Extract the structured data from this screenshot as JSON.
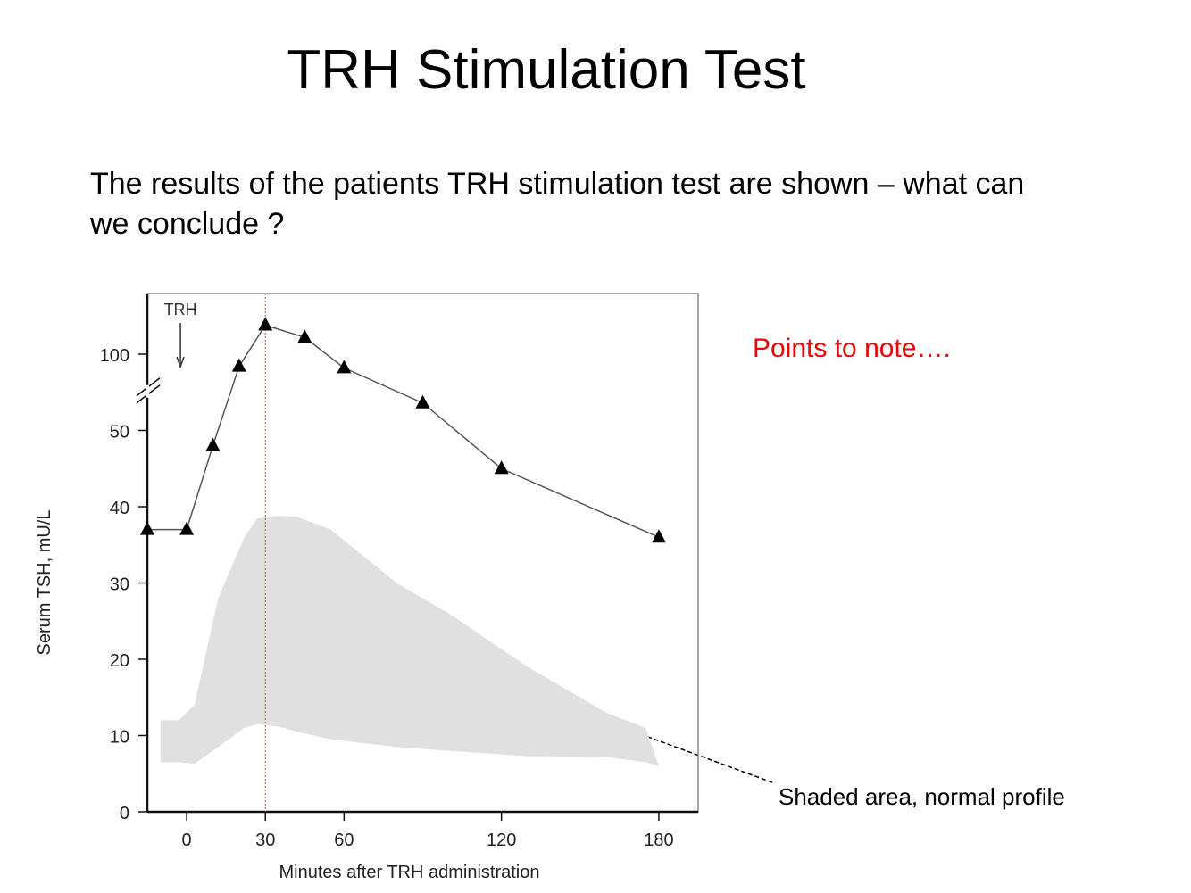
{
  "title": "TRH Stimulation Test",
  "body": [
    "The results of the patients TRH stimulation test are shown – what can",
    "we conclude ?"
  ],
  "note": "Points to note….",
  "chart_data": {
    "type": "line",
    "x_label": "Minutes after TRH administration",
    "y_label": "Serum TSH, mU/L",
    "x": [
      -15,
      0,
      10,
      20,
      30,
      45,
      60,
      90,
      120,
      180
    ],
    "series": [
      {
        "color": "#555555",
        "values": [
          37,
          37,
          48,
          92,
          119,
          111,
          91,
          68,
          45,
          36
        ]
      }
    ],
    "xlim": [
      -15,
      195
    ],
    "xticks": [
      0,
      30,
      60,
      120,
      180
    ],
    "ylim": [
      0,
      140
    ],
    "yticks": [
      0,
      10,
      20,
      30,
      40,
      50,
      100
    ],
    "axis_break": true,
    "vline": {
      "x": 30,
      "color": "#d04040"
    },
    "marker_annotation": {
      "label": "TRH",
      "x": 0
    },
    "shaded_area": {
      "label": "Shaded area, normal profile",
      "color": "#e0e0e0",
      "x": [
        -10,
        -3,
        3,
        12,
        22,
        27,
        35,
        42,
        55,
        80,
        100,
        130,
        160,
        175,
        180
      ],
      "upper": [
        12,
        12,
        14,
        28,
        36,
        38.5,
        38.8,
        38.7,
        37,
        30,
        26,
        19,
        13,
        11,
        6
      ],
      "lower": [
        6.5,
        6.5,
        6.3,
        8.5,
        11,
        11.5,
        11.2,
        10.5,
        9.5,
        8.5,
        8,
        7.3,
        7.2,
        6.5,
        6
      ]
    }
  }
}
